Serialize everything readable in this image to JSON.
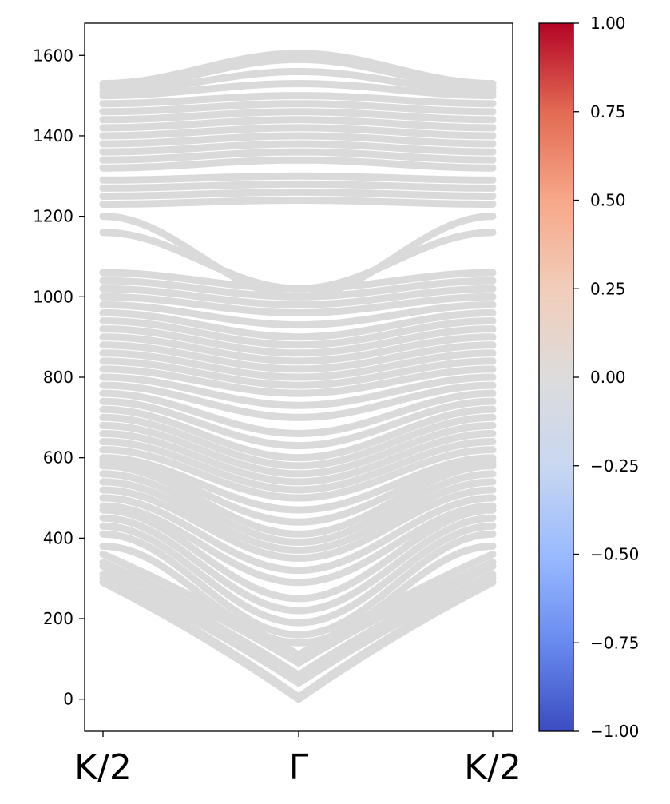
{
  "chart_data": {
    "type": "line",
    "title": "",
    "xlabel": "",
    "ylabel": "",
    "x_ticks": [
      "K/2",
      "Γ",
      "K/2"
    ],
    "xlim": [
      -1,
      1
    ],
    "ylim": [
      -80,
      1680
    ],
    "y_ticks": [
      0,
      200,
      400,
      600,
      800,
      1000,
      1200,
      1400,
      1600
    ],
    "y_tick_labels": [
      "0",
      "200",
      "400",
      "600",
      "800",
      "1000",
      "1200",
      "1400",
      "1600"
    ],
    "line_color": "#dadada",
    "grid": false,
    "colorbar": {
      "range": [
        -1,
        1
      ],
      "colormap": "coolwarm",
      "ticks": [
        1.0,
        0.75,
        0.5,
        0.25,
        0.0,
        -0.25,
        -0.5,
        -0.75,
        -1.0
      ],
      "tick_labels": [
        "1.00",
        "0.75",
        "0.50",
        "0.25",
        "0.00",
        "−0.25",
        "−0.50",
        "−0.75",
        "−1.00"
      ],
      "colors": [
        "#3b4cc0",
        "#688aef",
        "#9abbff",
        "#c9d7f0",
        "#dddcdc",
        "#f1cdba",
        "#f7a889",
        "#e36a53",
        "#b40426"
      ]
    },
    "series": [
      {
        "gamma": 0,
        "edge": 290
      },
      {
        "gamma": 5,
        "edge": 300
      },
      {
        "gamma": 40,
        "edge": 310
      },
      {
        "gamma": 60,
        "edge": 330
      },
      {
        "gamma": 90,
        "edge": 340
      },
      {
        "gamma": 110,
        "edge": 360
      },
      {
        "gamma": 140,
        "edge": 380
      },
      {
        "gamma": 160,
        "edge": 410
      },
      {
        "gamma": 190,
        "edge": 430
      },
      {
        "gamma": 220,
        "edge": 450
      },
      {
        "gamma": 250,
        "edge": 470
      },
      {
        "gamma": 290,
        "edge": 480
      },
      {
        "gamma": 320,
        "edge": 500
      },
      {
        "gamma": 350,
        "edge": 520
      },
      {
        "gamma": 370,
        "edge": 540
      },
      {
        "gamma": 390,
        "edge": 560
      },
      {
        "gamma": 410,
        "edge": 580
      },
      {
        "gamma": 440,
        "edge": 590
      },
      {
        "gamma": 470,
        "edge": 600
      },
      {
        "gamma": 500,
        "edge": 620
      },
      {
        "gamma": 520,
        "edge": 640
      },
      {
        "gamma": 540,
        "edge": 660
      },
      {
        "gamma": 560,
        "edge": 680
      },
      {
        "gamma": 580,
        "edge": 700
      },
      {
        "gamma": 600,
        "edge": 720
      },
      {
        "gamma": 630,
        "edge": 740
      },
      {
        "gamma": 660,
        "edge": 760
      },
      {
        "gamma": 700,
        "edge": 780
      },
      {
        "gamma": 730,
        "edge": 800
      },
      {
        "gamma": 760,
        "edge": 820
      },
      {
        "gamma": 780,
        "edge": 840
      },
      {
        "gamma": 800,
        "edge": 860
      },
      {
        "gamma": 820,
        "edge": 880
      },
      {
        "gamma": 840,
        "edge": 900
      },
      {
        "gamma": 860,
        "edge": 920
      },
      {
        "gamma": 880,
        "edge": 940
      },
      {
        "gamma": 900,
        "edge": 960
      },
      {
        "gamma": 930,
        "edge": 980
      },
      {
        "gamma": 960,
        "edge": 1000
      },
      {
        "gamma": 980,
        "edge": 1020
      },
      {
        "gamma": 1000,
        "edge": 1040
      },
      {
        "gamma": 1020,
        "edge": 1060
      },
      {
        "gamma": 1020,
        "edge": 1160
      },
      {
        "gamma": 1000,
        "edge": 1200
      },
      {
        "gamma": 1240,
        "edge": 1230
      },
      {
        "gamma": 1260,
        "edge": 1250
      },
      {
        "gamma": 1280,
        "edge": 1270
      },
      {
        "gamma": 1300,
        "edge": 1290
      },
      {
        "gamma": 1340,
        "edge": 1320
      },
      {
        "gamma": 1360,
        "edge": 1340
      },
      {
        "gamma": 1380,
        "edge": 1360
      },
      {
        "gamma": 1400,
        "edge": 1380
      },
      {
        "gamma": 1420,
        "edge": 1400
      },
      {
        "gamma": 1440,
        "edge": 1420
      },
      {
        "gamma": 1460,
        "edge": 1440
      },
      {
        "gamma": 1480,
        "edge": 1460
      },
      {
        "gamma": 1500,
        "edge": 1480
      },
      {
        "gamma": 1530,
        "edge": 1500
      },
      {
        "gamma": 1560,
        "edge": 1510
      },
      {
        "gamma": 1590,
        "edge": 1520
      },
      {
        "gamma": 1605,
        "edge": 1530
      }
    ]
  }
}
